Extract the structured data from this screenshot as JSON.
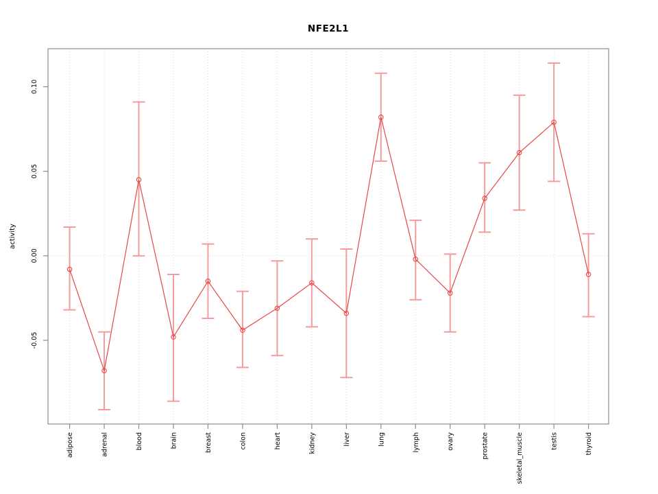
{
  "title": "NFE2L1",
  "chart_data": {
    "type": "line",
    "title": "NFE2L1",
    "xlabel": "",
    "ylabel": "activity",
    "categories": [
      "adipose",
      "adrenal",
      "blood",
      "brain",
      "breast",
      "colon",
      "heart",
      "kidney",
      "liver",
      "lung",
      "lymph",
      "ovary",
      "prostate",
      "skeletal_muscle",
      "testis",
      "thyroid"
    ],
    "series": [
      {
        "name": "activity",
        "values": [
          -0.008,
          -0.068,
          0.045,
          -0.048,
          -0.015,
          -0.044,
          -0.031,
          -0.016,
          -0.034,
          0.082,
          -0.002,
          -0.022,
          0.034,
          0.061,
          0.079,
          -0.011
        ],
        "ci_low": [
          -0.032,
          -0.091,
          0.0,
          -0.086,
          -0.037,
          -0.066,
          -0.059,
          -0.042,
          -0.072,
          0.056,
          -0.026,
          -0.045,
          0.014,
          0.027,
          0.044,
          -0.036
        ],
        "ci_high": [
          0.017,
          -0.045,
          0.091,
          -0.011,
          0.007,
          -0.021,
          -0.003,
          0.01,
          0.004,
          0.108,
          0.021,
          0.001,
          0.055,
          0.095,
          0.114,
          0.013
        ]
      }
    ],
    "ylim": [
      -0.0995,
      0.1225
    ],
    "yticks": [
      -0.05,
      0.0,
      0.05,
      0.1
    ],
    "ytick_labels": [
      "-0.05",
      "0.00",
      "0.05",
      "0.10"
    ],
    "grid": {
      "vertical": "dotted line at every category",
      "horizontal": "dotted line at y=0"
    },
    "legend": "none",
    "colors": {
      "point_line": "#e84545",
      "error_bar": "#f49c9c",
      "grid": "#d9d9d9",
      "frame": "#8c8c8c",
      "text": "#000000",
      "background": "#ffffff"
    }
  }
}
